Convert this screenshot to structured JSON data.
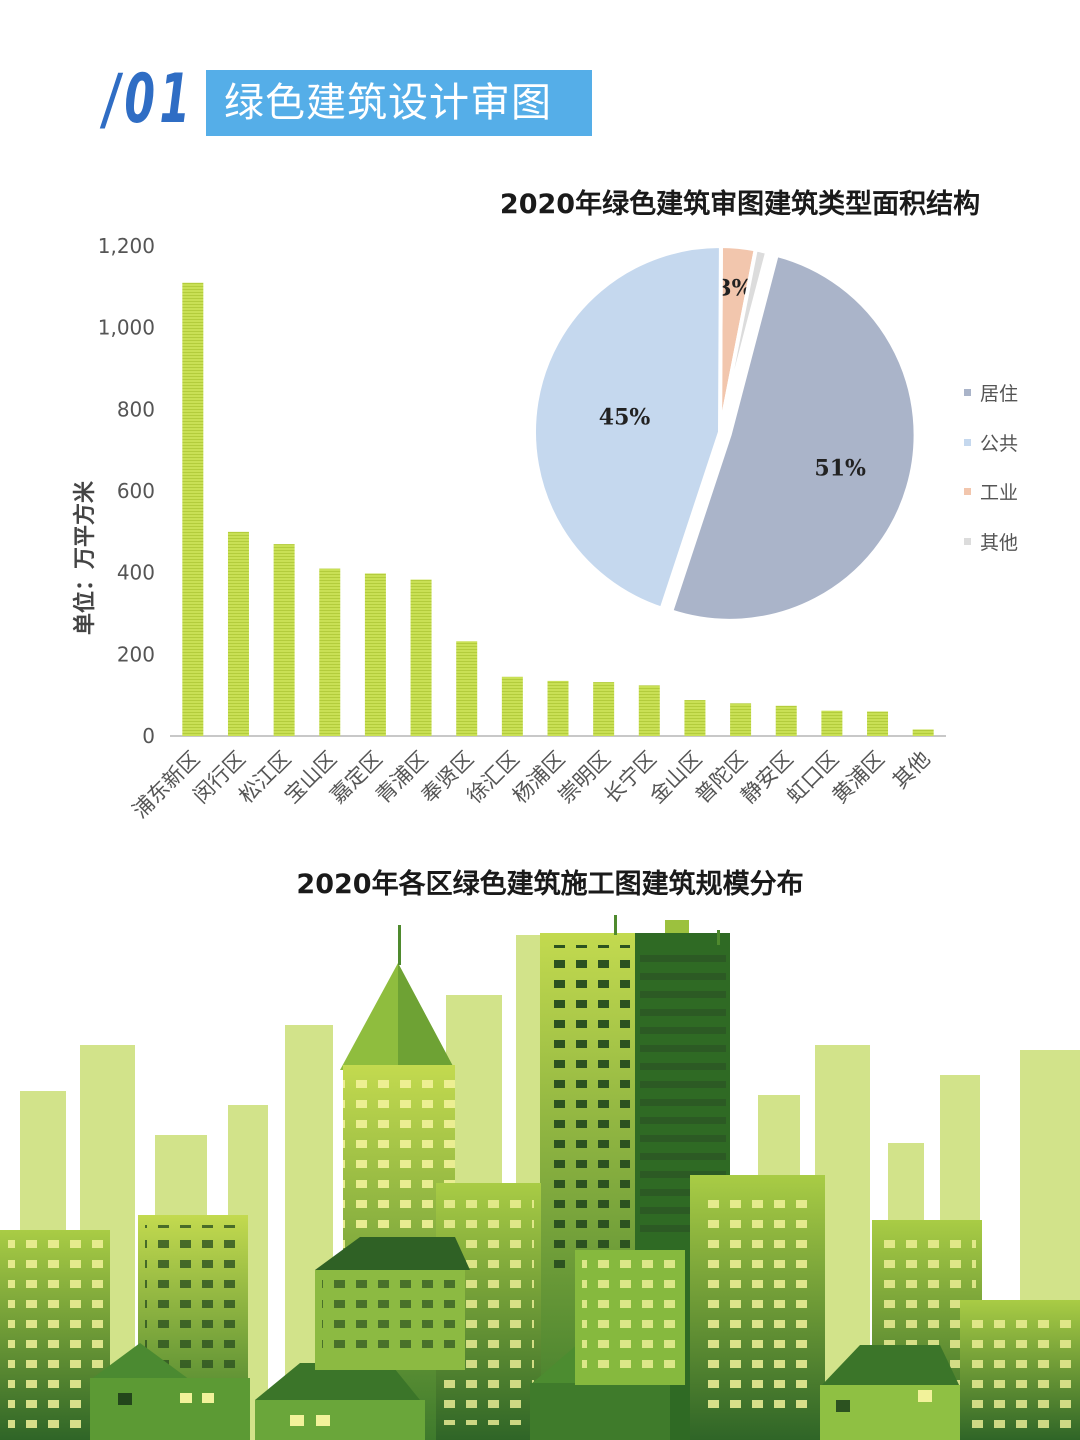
{
  "header": {
    "section_number": "/01",
    "section_title": "绿色建筑设计审图"
  },
  "chart_data": [
    {
      "type": "pie",
      "title": "2020年绿色建筑审图建筑类型面积结构",
      "legend_position": "right",
      "slices": [
        {
          "label": "居住",
          "value": 51,
          "display": "51%",
          "color": "#aab4c9"
        },
        {
          "label": "公共",
          "value": 45,
          "display": "45%",
          "color": "#c5d8ee"
        },
        {
          "label": "工业",
          "value": 3,
          "display": "3%",
          "color": "#f2c6ad"
        },
        {
          "label": "其他",
          "value": 1,
          "display": "1%",
          "color": "#dcdcdc"
        }
      ]
    },
    {
      "type": "bar",
      "title": "2020年各区绿色建筑施工图建筑规模分布",
      "ylabel": "单位：万平方米",
      "xlabel": "",
      "ylim": [
        0,
        1200
      ],
      "yticks": [
        0,
        200,
        400,
        600,
        800,
        1000,
        1200
      ],
      "ytick_labels": [
        "0",
        "200",
        "400",
        "600",
        "800",
        "1,000",
        "1,200"
      ],
      "grid": false,
      "bar_color": "#c9e055",
      "categories": [
        "浦东新区",
        "闵行区",
        "松江区",
        "宝山区",
        "嘉定区",
        "青浦区",
        "奉贤区",
        "徐汇区",
        "杨浦区",
        "崇明区",
        "长宁区",
        "金山区",
        "普陀区",
        "静安区",
        "虹口区",
        "黄浦区",
        "其他"
      ],
      "values": [
        1110,
        500,
        470,
        410,
        398,
        383,
        232,
        145,
        135,
        132,
        124,
        88,
        80,
        74,
        62,
        60,
        16
      ]
    }
  ]
}
